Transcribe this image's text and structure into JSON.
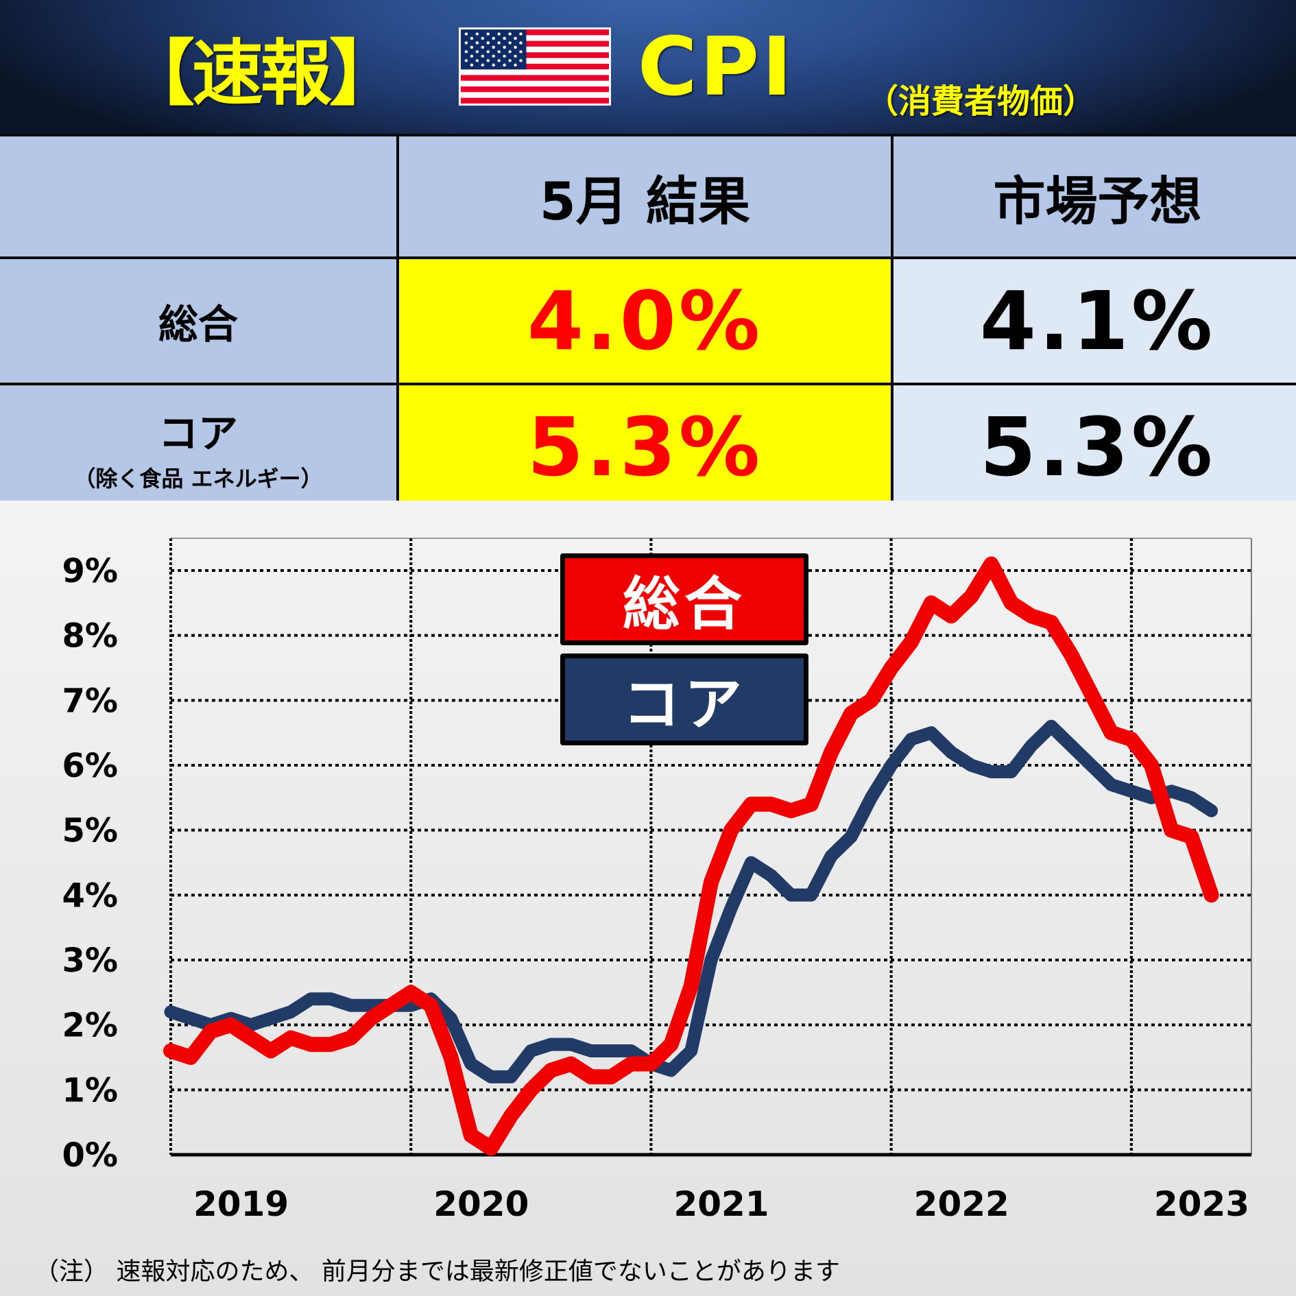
{
  "header": {
    "tag": "【速報】",
    "flag_icon": "us-flag-icon",
    "title": "CPI",
    "subtitle": "（消費者物価）"
  },
  "table": {
    "columns": [
      "",
      "5月 結果",
      "市場予想"
    ],
    "rows": [
      {
        "label": "総合",
        "sublabel": "",
        "result": "4.0%",
        "forecast": "4.1%"
      },
      {
        "label": "コア",
        "sublabel": "（除く食品 エネルギー）",
        "result": "5.3%",
        "forecast": "5.3%"
      }
    ]
  },
  "legend": {
    "total": "総合",
    "core": "コア"
  },
  "footnote": "（注） 速報対応のため、 前月分までは最新修正値でないことがあります",
  "colors": {
    "total": "#f00000",
    "core": "#213a66",
    "result_text": "#ff0000",
    "result_bg": "#ffff00",
    "title_text": "#ffff00"
  },
  "chart_data": {
    "type": "line",
    "title": "CPI（消費者物価）前年比",
    "xlabel": "",
    "ylabel": "",
    "x_tick_labels": [
      "2019",
      "2020",
      "2021",
      "2022",
      "2023"
    ],
    "y_tick_labels": [
      "0%",
      "1%",
      "2%",
      "3%",
      "4%",
      "5%",
      "6%",
      "7%",
      "8%",
      "9%"
    ],
    "ylim": [
      0,
      9
    ],
    "grid": true,
    "legend_position": "top-center",
    "x": [
      "2019-01",
      "2019-02",
      "2019-03",
      "2019-04",
      "2019-05",
      "2019-06",
      "2019-07",
      "2019-08",
      "2019-09",
      "2019-10",
      "2019-11",
      "2019-12",
      "2020-01",
      "2020-02",
      "2020-03",
      "2020-04",
      "2020-05",
      "2020-06",
      "2020-07",
      "2020-08",
      "2020-09",
      "2020-10",
      "2020-11",
      "2020-12",
      "2021-01",
      "2021-02",
      "2021-03",
      "2021-04",
      "2021-05",
      "2021-06",
      "2021-07",
      "2021-08",
      "2021-09",
      "2021-10",
      "2021-11",
      "2021-12",
      "2022-01",
      "2022-02",
      "2022-03",
      "2022-04",
      "2022-05",
      "2022-06",
      "2022-07",
      "2022-08",
      "2022-09",
      "2022-10",
      "2022-11",
      "2022-12",
      "2023-01",
      "2023-02",
      "2023-03",
      "2023-04",
      "2023-05"
    ],
    "series": [
      {
        "name": "総合",
        "color": "#f00000",
        "values": [
          1.6,
          1.5,
          1.9,
          2.0,
          1.8,
          1.6,
          1.8,
          1.7,
          1.7,
          1.8,
          2.1,
          2.3,
          2.5,
          2.3,
          1.5,
          0.3,
          0.1,
          0.6,
          1.0,
          1.3,
          1.4,
          1.2,
          1.2,
          1.4,
          1.4,
          1.7,
          2.6,
          4.2,
          5.0,
          5.4,
          5.4,
          5.3,
          5.4,
          6.2,
          6.8,
          7.0,
          7.5,
          7.9,
          8.5,
          8.3,
          8.6,
          9.1,
          8.5,
          8.3,
          8.2,
          7.7,
          7.1,
          6.5,
          6.4,
          6.0,
          5.0,
          4.9,
          4.0
        ]
      },
      {
        "name": "コア",
        "color": "#213a66",
        "values": [
          2.2,
          2.1,
          2.0,
          2.1,
          2.0,
          2.1,
          2.2,
          2.4,
          2.4,
          2.3,
          2.3,
          2.3,
          2.3,
          2.4,
          2.1,
          1.4,
          1.2,
          1.2,
          1.6,
          1.7,
          1.7,
          1.6,
          1.6,
          1.6,
          1.4,
          1.3,
          1.6,
          3.0,
          3.8,
          4.5,
          4.3,
          4.0,
          4.0,
          4.6,
          4.9,
          5.5,
          6.0,
          6.4,
          6.5,
          6.2,
          6.0,
          5.9,
          5.9,
          6.3,
          6.6,
          6.3,
          6.0,
          5.7,
          5.6,
          5.5,
          5.6,
          5.5,
          5.3
        ]
      }
    ]
  }
}
